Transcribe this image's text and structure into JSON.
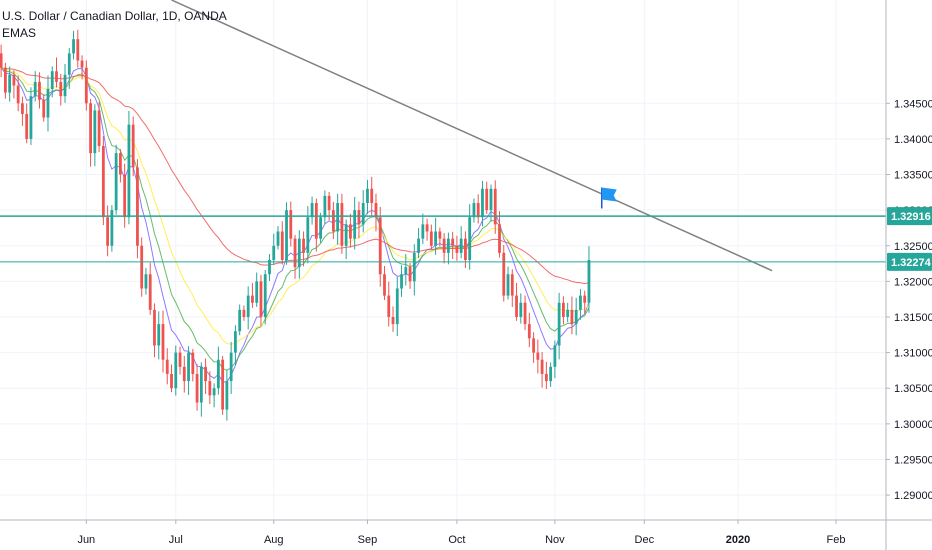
{
  "header": {
    "symbol_line": "U.S. Dollar / Canadian Dollar, 1D, OANDA",
    "indicator_label": "EMAS"
  },
  "chart_data": {
    "type": "candlestick",
    "ylim": [
      1.2865,
      1.3595
    ],
    "y_ticks": [
      "1.34500",
      "1.34000",
      "1.33500",
      "1.33000",
      "1.32500",
      "1.32000",
      "1.31500",
      "1.31000",
      "1.30500",
      "1.30000",
      "1.29500",
      "1.29000"
    ],
    "y_tick_values": [
      1.345,
      1.34,
      1.335,
      1.33,
      1.325,
      1.32,
      1.315,
      1.31,
      1.305,
      1.3,
      1.295,
      1.29
    ],
    "x_ticks": [
      {
        "label": "Jun",
        "bar": 20,
        "bold": false
      },
      {
        "label": "Jul",
        "bar": 41,
        "bold": false
      },
      {
        "label": "Aug",
        "bar": 64,
        "bold": false
      },
      {
        "label": "Sep",
        "bar": 86,
        "bold": false
      },
      {
        "label": "Oct",
        "bar": 107,
        "bold": false
      },
      {
        "label": "Nov",
        "bar": 130,
        "bold": false
      },
      {
        "label": "Dec",
        "bar": 151,
        "bold": false
      },
      {
        "label": "2020",
        "bar": 173,
        "bold": true
      },
      {
        "label": "Feb",
        "bar": 196,
        "bold": false
      }
    ],
    "bar_count_visible": 208,
    "candle_colors": {
      "up": "#26a69a",
      "down": "#ef5350"
    },
    "horizontal_lines": [
      {
        "price": 1.32916,
        "label": "1.32916",
        "color": "#26a69a"
      },
      {
        "price": 1.32274,
        "label": "1.32274",
        "color": "#26a69a"
      }
    ],
    "trendline": {
      "start": {
        "bar": 40,
        "price": 1.3595
      },
      "end": {
        "bar": 181,
        "price": 1.3215
      },
      "color": "#808080"
    },
    "flag": {
      "bar": 141,
      "price": 1.3315,
      "color": "#2196f3"
    },
    "ema_colors": [
      "#7b61ff",
      "#4caf50",
      "#ffeb3b",
      "#ef5350"
    ],
    "closes": [
      1.35,
      1.3465,
      1.349,
      1.3475,
      1.345,
      1.3435,
      1.34,
      1.346,
      1.348,
      1.3455,
      1.343,
      1.347,
      1.3495,
      1.348,
      1.346,
      1.349,
      1.352,
      1.354,
      1.351,
      1.35,
      1.345,
      1.338,
      1.344,
      1.339,
      1.329,
      1.325,
      1.33,
      1.338,
      1.335,
      1.329,
      1.342,
      1.336,
      1.325,
      1.319,
      1.321,
      1.316,
      1.311,
      1.314,
      1.309,
      1.307,
      1.305,
      1.31,
      1.308,
      1.306,
      1.31,
      1.307,
      1.303,
      1.308,
      1.306,
      1.304,
      1.305,
      1.309,
      1.302,
      1.306,
      1.31,
      1.313,
      1.316,
      1.315,
      1.318,
      1.317,
      1.32,
      1.315,
      1.321,
      1.323,
      1.325,
      1.327,
      1.323,
      1.33,
      1.326,
      1.322,
      1.326,
      1.324,
      1.329,
      1.331,
      1.326,
      1.329,
      1.332,
      1.33,
      1.327,
      1.331,
      1.325,
      1.328,
      1.326,
      1.33,
      1.328,
      1.331,
      1.333,
      1.331,
      1.329,
      1.321,
      1.318,
      1.315,
      1.314,
      1.319,
      1.321,
      1.322,
      1.32,
      1.324,
      1.326,
      1.328,
      1.327,
      1.325,
      1.327,
      1.326,
      1.324,
      1.326,
      1.325,
      1.324,
      1.326,
      1.323,
      1.329,
      1.331,
      1.329,
      1.333,
      1.33,
      1.333,
      1.328,
      1.324,
      1.318,
      1.321,
      1.318,
      1.315,
      1.317,
      1.314,
      1.312,
      1.31,
      1.309,
      1.307,
      1.306,
      1.308,
      1.311,
      1.317,
      1.315,
      1.316,
      1.314,
      1.316,
      1.318,
      1.317,
      1.323
    ]
  }
}
